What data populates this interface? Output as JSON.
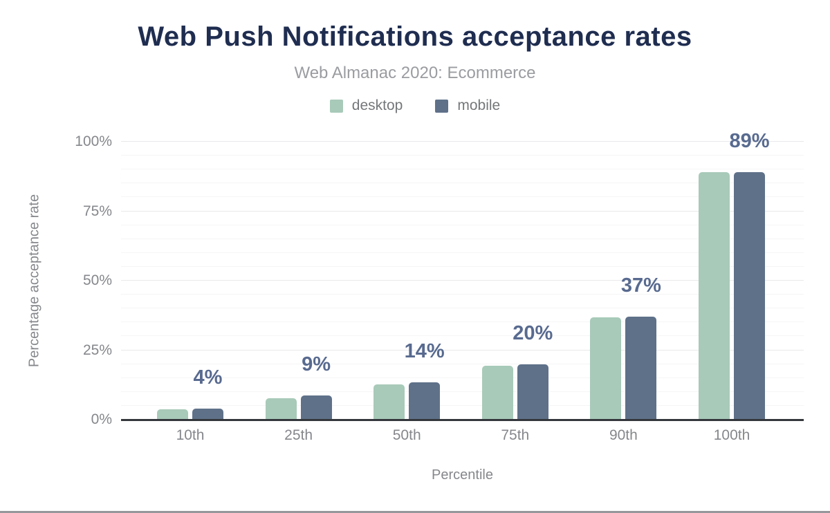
{
  "chart_data": {
    "type": "bar",
    "title": "Web Push Notifications acceptance rates",
    "subtitle": "Web Almanac 2020: Ecommerce",
    "categories": [
      "10th",
      "25th",
      "50th",
      "75th",
      "90th",
      "100th"
    ],
    "series": [
      {
        "name": "desktop",
        "color": "#a8cab9",
        "values": [
          3.7,
          7.6,
          12.8,
          19.3,
          36.9,
          89
        ]
      },
      {
        "name": "mobile",
        "color": "#5f7189",
        "values": [
          4.0,
          8.7,
          13.5,
          19.9,
          37.0,
          89
        ]
      }
    ],
    "bar_labels": [
      "4%",
      "9%",
      "14%",
      "20%",
      "37%",
      "89%"
    ],
    "x_axis": {
      "title": "Percentile"
    },
    "y_axis": {
      "title": "Percentage acceptance rate",
      "range": [
        0,
        100
      ],
      "ticks": [
        {
          "value": 0,
          "label": "0%"
        },
        {
          "value": 25,
          "label": "25%"
        },
        {
          "value": 50,
          "label": "50%"
        },
        {
          "value": 75,
          "label": "75%"
        },
        {
          "value": 100,
          "label": "100%"
        }
      ]
    },
    "grid": {
      "orientation": "horizontal",
      "minor_step": 5,
      "major_step": 25
    },
    "legend_position": "top",
    "value_labels_follow": "mobile"
  },
  "colors": {
    "title": "#1f2d50",
    "subtitle": "#9a9ca0",
    "axis_text": "#85878b",
    "legend_text": "#747779",
    "bar_label": "#586a8f",
    "axis_line": "#34373c",
    "gridline_minor": "#f5f5f6",
    "gridline_major": "#e9e9eb",
    "page_bottom_border": "#95979a",
    "desktop": "#a8cab9",
    "mobile": "#5f7189"
  }
}
